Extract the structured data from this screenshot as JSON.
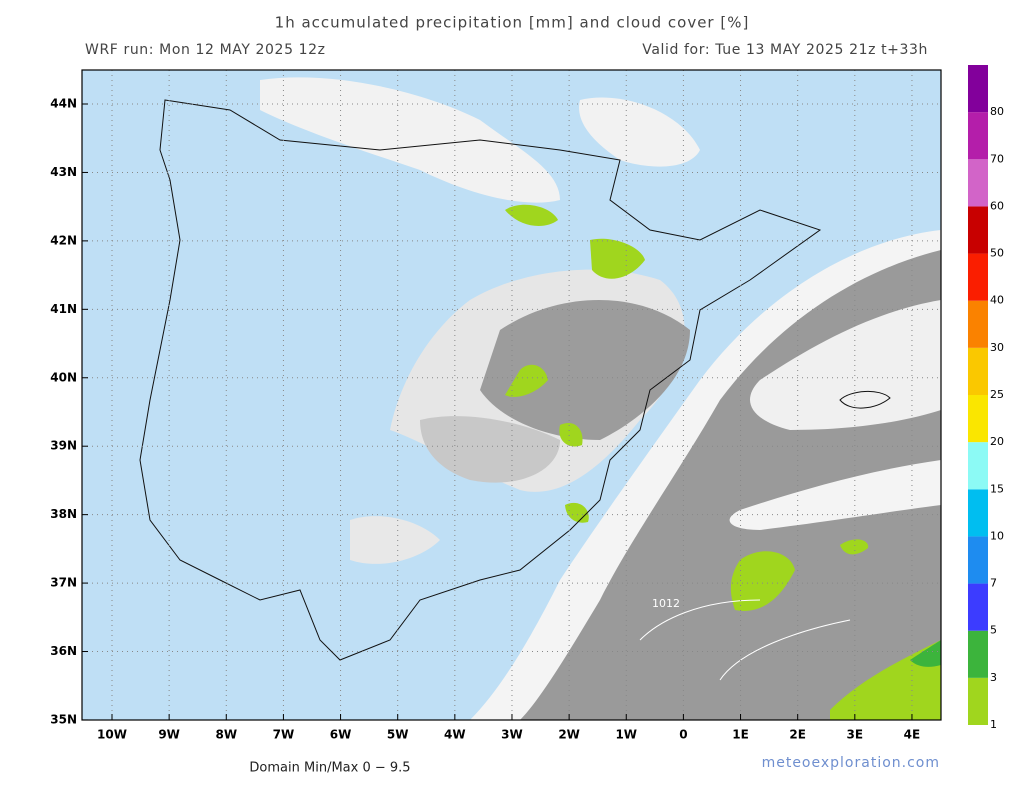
{
  "header": {
    "title": "1h accumulated precipitation [mm] and cloud cover [%]",
    "run": "WRF run: Mon 12 MAY 2025 12z",
    "valid": "Valid for: Tue 13 MAY 2025 21z  t+33h"
  },
  "map": {
    "lat_labels": [
      "44N",
      "43N",
      "42N",
      "41N",
      "40N",
      "39N",
      "38N",
      "37N",
      "36N",
      "35N"
    ],
    "lon_labels": [
      "10W",
      "9W",
      "8W",
      "7W",
      "6W",
      "5W",
      "4W",
      "3W",
      "2W",
      "1W",
      "0",
      "1E",
      "2E",
      "3E",
      "4E"
    ],
    "contour_label": "1012"
  },
  "colorbar": {
    "levels": [
      1,
      3,
      5,
      7,
      10,
      15,
      20,
      25,
      30,
      40,
      50,
      60,
      70,
      80
    ],
    "colors": [
      "#a0d61e",
      "#3cb43c",
      "#3c3cff",
      "#1e8cf0",
      "#00bef0",
      "#8cfaf5",
      "#fae600",
      "#fac800",
      "#fa8200",
      "#fa1e00",
      "#c80000",
      "#d264c8",
      "#b41eaa",
      "#82009b"
    ]
  },
  "footer": {
    "domain": "Domain Min/Max 0 − 9.5",
    "site": "meteoexploration.com"
  }
}
